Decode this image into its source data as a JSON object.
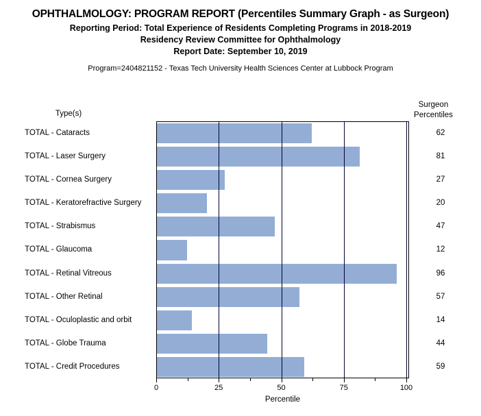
{
  "header": {
    "title": "OPHTHALMOLOGY: PROGRAM REPORT (Percentiles Summary Graph - as Surgeon)",
    "reporting_period": "Reporting Period: Total Experience of Residents Completing Programs in 2018-2019",
    "committee": "Residency Review Committee for Ophthalmology",
    "report_date": "Report Date: September 10, 2019",
    "program_line": "Program=2404821152 - Texas Tech University Health Sciences Center at Lubbock Program"
  },
  "chart": {
    "left_column_header": "Type(s)",
    "right_column_header_line1": "Surgeon",
    "right_column_header_line2": "Percentiles",
    "bar_color": "#93ADD5",
    "gridline_color": "#000033",
    "frame_color": "#000000"
  },
  "chart_data": {
    "type": "bar",
    "orientation": "horizontal",
    "title": "OPHTHALMOLOGY: PROGRAM REPORT (Percentiles Summary Graph - as Surgeon)",
    "categories": [
      "TOTAL - Cataracts",
      "TOTAL - Laser Surgery",
      "TOTAL - Cornea Surgery",
      "TOTAL - Keratorefractive Surgery",
      "TOTAL - Strabismus",
      "TOTAL - Glaucoma",
      "TOTAL - Retinal Vitreous",
      "TOTAL - Other Retinal",
      "TOTAL - Oculoplastic and orbit",
      "TOTAL - Globe Trauma",
      "TOTAL - Credit Procedures"
    ],
    "values": [
      62,
      81,
      27,
      20,
      47,
      12,
      96,
      57,
      14,
      44,
      59
    ],
    "xlabel": "Percentile",
    "xlim": [
      0,
      100
    ],
    "x_major_ticks": [
      0,
      25,
      50,
      75,
      100
    ],
    "x_minor_ticks": [
      12.5,
      37.5,
      62.5,
      87.5
    ],
    "grid": true,
    "legend": false,
    "bar_color": "#93ADD5"
  }
}
